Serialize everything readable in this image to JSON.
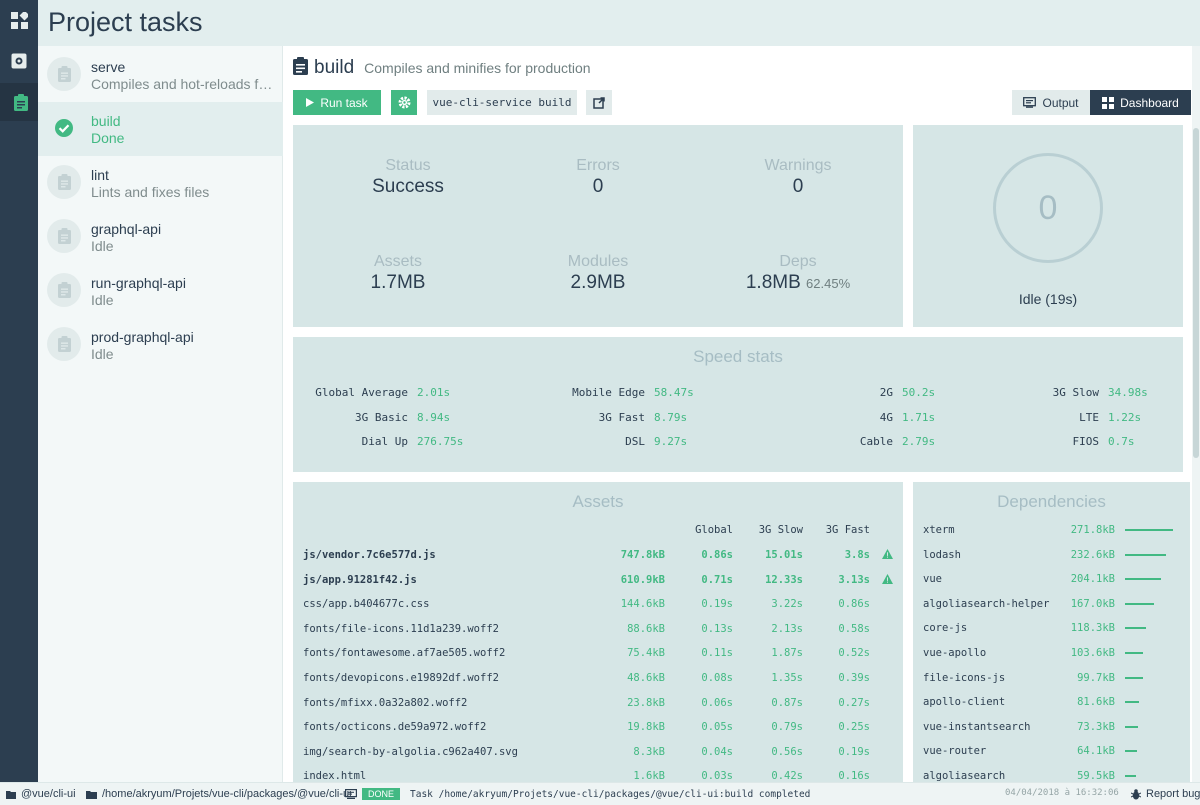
{
  "header": {
    "title": "Project tasks"
  },
  "rail": {
    "items": [
      "dashboard-icon",
      "plugins-icon",
      "tasks-icon"
    ]
  },
  "tasks": [
    {
      "name": "serve",
      "desc": "Compiles and hot-reloads for development",
      "state": "idle"
    },
    {
      "name": "build",
      "desc": "Done",
      "state": "done"
    },
    {
      "name": "lint",
      "desc": "Lints and fixes files",
      "state": "idle"
    },
    {
      "name": "graphql-api",
      "desc": "Idle",
      "state": "idle"
    },
    {
      "name": "run-graphql-api",
      "desc": "Idle",
      "state": "idle"
    },
    {
      "name": "prod-graphql-api",
      "desc": "Idle",
      "state": "idle"
    }
  ],
  "task": {
    "title": "build",
    "subtitle": "Compiles and minifies for production",
    "run_label": "Run task",
    "command": "vue-cli-service build",
    "output_label": "Output",
    "dashboard_label": "Dashboard"
  },
  "status": {
    "status_label": "Status",
    "status_value": "Success",
    "errors_label": "Errors",
    "errors_value": "0",
    "warnings_label": "Warnings",
    "warnings_value": "0",
    "assets_label": "Assets",
    "assets_value": "1.7MB",
    "modules_label": "Modules",
    "modules_value": "2.9MB",
    "deps_label": "Deps",
    "deps_value": "1.8MB",
    "deps_pct": "62.45%"
  },
  "progress": {
    "value": "0",
    "label": "Idle (19s)"
  },
  "speed": {
    "title": "Speed stats",
    "items": [
      {
        "label": "Global Average",
        "value": "2.01s"
      },
      {
        "label": "Mobile Edge",
        "value": "58.47s"
      },
      {
        "label": "2G",
        "value": "50.2s"
      },
      {
        "label": "3G Slow",
        "value": "34.98s"
      },
      {
        "label": "3G Basic",
        "value": "8.94s"
      },
      {
        "label": "3G Fast",
        "value": "8.79s"
      },
      {
        "label": "4G",
        "value": "1.71s"
      },
      {
        "label": "LTE",
        "value": "1.22s"
      },
      {
        "label": "Dial Up",
        "value": "276.75s"
      },
      {
        "label": "DSL",
        "value": "9.27s"
      },
      {
        "label": "Cable",
        "value": "2.79s"
      },
      {
        "label": "FIOS",
        "value": "0.7s"
      }
    ]
  },
  "assets": {
    "title": "Assets",
    "columns": {
      "global": "Global",
      "slow": "3G Slow",
      "fast": "3G Fast"
    },
    "rows": [
      {
        "name": "js/vendor.7c6e577d.js",
        "size": "747.8kB",
        "global": "0.86s",
        "slow": "15.01s",
        "fast": "3.8s",
        "big": true
      },
      {
        "name": "js/app.91281f42.js",
        "size": "610.9kB",
        "global": "0.71s",
        "slow": "12.33s",
        "fast": "3.13s",
        "big": true
      },
      {
        "name": "css/app.b404677c.css",
        "size": "144.6kB",
        "global": "0.19s",
        "slow": "3.22s",
        "fast": "0.86s",
        "big": false
      },
      {
        "name": "fonts/file-icons.11d1a239.woff2",
        "size": "88.6kB",
        "global": "0.13s",
        "slow": "2.13s",
        "fast": "0.58s",
        "big": false
      },
      {
        "name": "fonts/fontawesome.af7ae505.woff2",
        "size": "75.4kB",
        "global": "0.11s",
        "slow": "1.87s",
        "fast": "0.52s",
        "big": false
      },
      {
        "name": "fonts/devopicons.e19892df.woff2",
        "size": "48.6kB",
        "global": "0.08s",
        "slow": "1.35s",
        "fast": "0.39s",
        "big": false
      },
      {
        "name": "fonts/mfixx.0a32a802.woff2",
        "size": "23.8kB",
        "global": "0.06s",
        "slow": "0.87s",
        "fast": "0.27s",
        "big": false
      },
      {
        "name": "fonts/octicons.de59a972.woff2",
        "size": "19.8kB",
        "global": "0.05s",
        "slow": "0.79s",
        "fast": "0.25s",
        "big": false
      },
      {
        "name": "img/search-by-algolia.c962a407.svg",
        "size": "8.3kB",
        "global": "0.04s",
        "slow": "0.56s",
        "fast": "0.19s",
        "big": false
      },
      {
        "name": "index.html",
        "size": "1.6kB",
        "global": "0.03s",
        "slow": "0.42s",
        "fast": "0.16s",
        "big": false
      }
    ]
  },
  "dependencies": {
    "title": "Dependencies",
    "rows": [
      {
        "name": "xterm",
        "size": "271.8kB",
        "ratio": 1.0
      },
      {
        "name": "lodash",
        "size": "232.6kB",
        "ratio": 0.86
      },
      {
        "name": "vue",
        "size": "204.1kB",
        "ratio": 0.75
      },
      {
        "name": "algoliasearch-helper",
        "size": "167.0kB",
        "ratio": 0.61
      },
      {
        "name": "core-js",
        "size": "118.3kB",
        "ratio": 0.44
      },
      {
        "name": "vue-apollo",
        "size": "103.6kB",
        "ratio": 0.38
      },
      {
        "name": "file-icons-js",
        "size": "99.7kB",
        "ratio": 0.37
      },
      {
        "name": "apollo-client",
        "size": "81.6kB",
        "ratio": 0.3
      },
      {
        "name": "vue-instantsearch",
        "size": "73.3kB",
        "ratio": 0.27
      },
      {
        "name": "vue-router",
        "size": "64.1kB",
        "ratio": 0.24
      },
      {
        "name": "algoliasearch",
        "size": "59.5kB",
        "ratio": 0.22
      }
    ]
  },
  "statusbar": {
    "project": "@vue/cli-ui",
    "cwd": "/home/akryum/Projets/vue-cli/packages/@vue/cli-ui",
    "badge": "DONE",
    "log": "Task /home/akryum/Projets/vue-cli/packages/@vue/cli-ui:build completed",
    "time": "04/04/2018 à 16:32:06",
    "report_label": "Report bug"
  },
  "colors": {
    "accent": "#42b983",
    "dark": "#2c3e50",
    "card": "#d6e6e6"
  }
}
